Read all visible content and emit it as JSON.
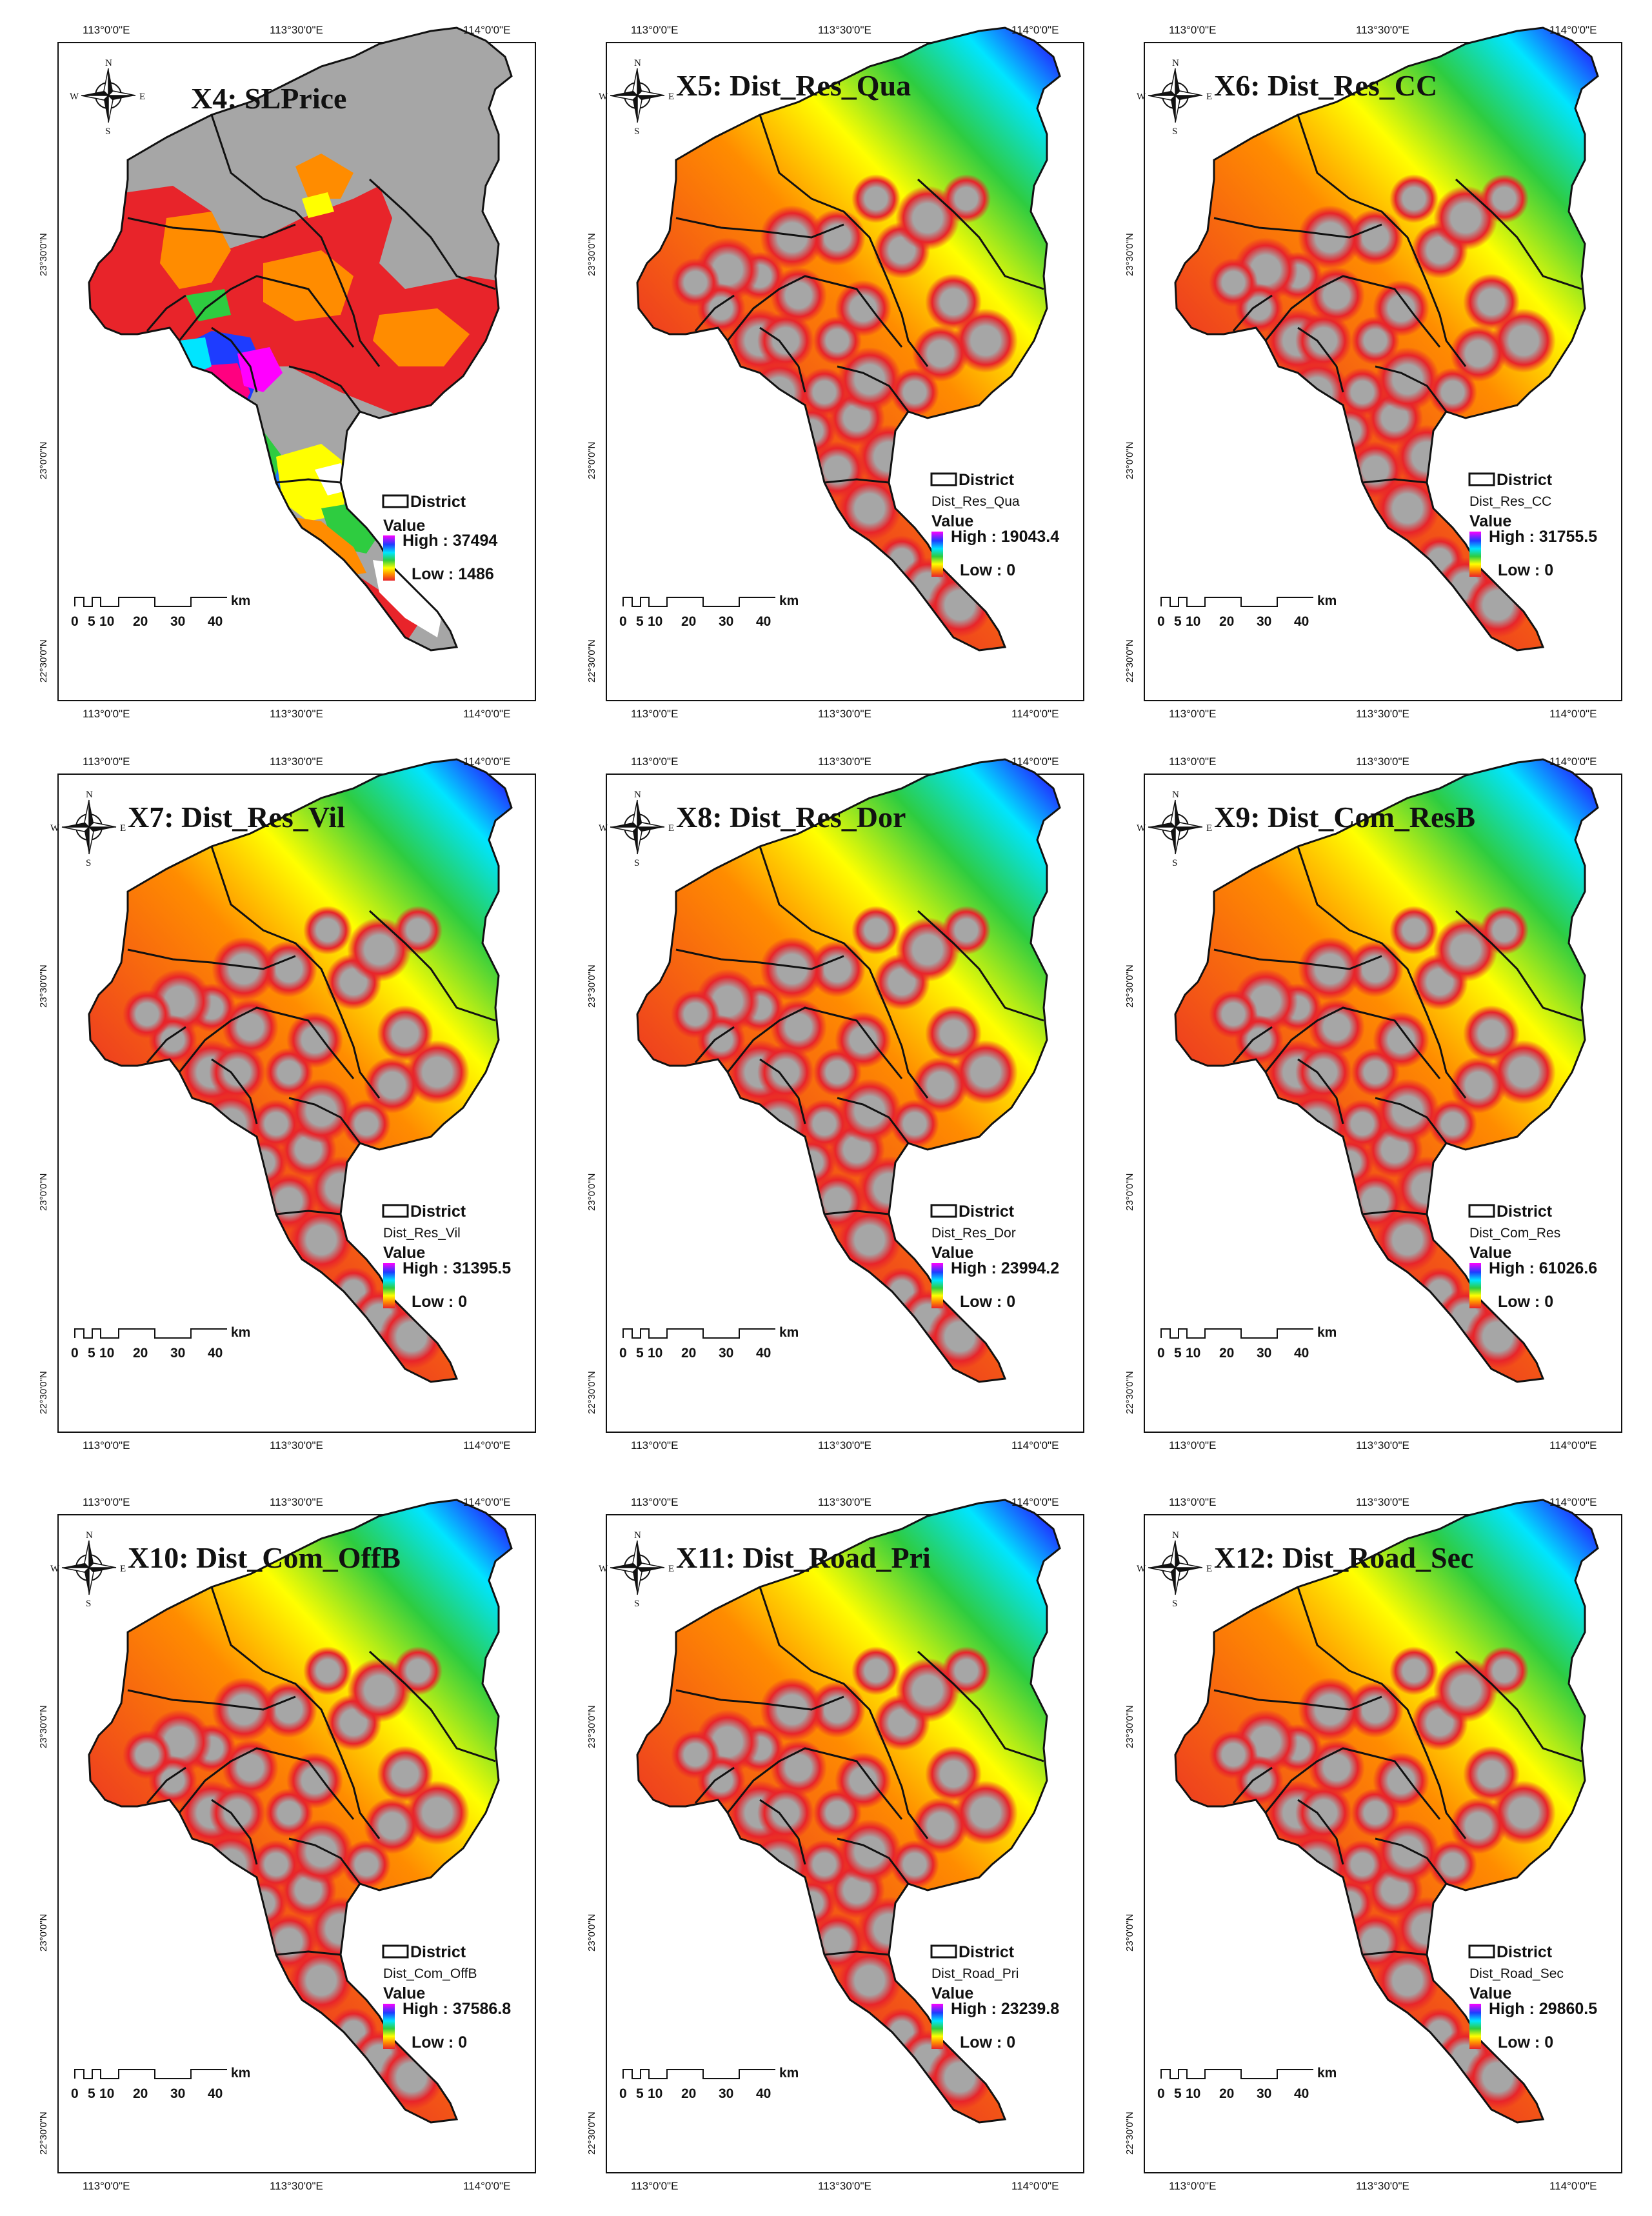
{
  "axis_labels": {
    "lon_left": "113°0'0\"E",
    "lon_mid": "113°30'0\"E",
    "lon_right": "114°0'0\"E",
    "lat_top": "23°30'0\"N",
    "lat_mid": "23°0'0\"N",
    "lat_bottom": "22°30'0\"N"
  },
  "compass": {
    "n": "N",
    "s": "S",
    "e": "E",
    "w": "W"
  },
  "scale_bar": {
    "ticks": [
      "0",
      "5",
      "10",
      "20",
      "30",
      "40"
    ],
    "unit": "km"
  },
  "legend_common": {
    "district": "District",
    "value": "Value"
  },
  "colors": {
    "gray": "#a6a6a6",
    "red": "#e8242a",
    "orange": "#ff8c00",
    "yellow": "#ffff00",
    "green": "#2ecc40",
    "cyan": "#00e5ff",
    "blue": "#1e3cff",
    "magenta": "#ff00ff"
  },
  "panels": [
    {
      "title": "X4: SLPrice",
      "layer": "",
      "high": "High : 37494",
      "low": "Low : 1486"
    },
    {
      "title": "X5: Dist_Res_Qua",
      "layer": "Dist_Res_Qua",
      "high": "High : 19043.4",
      "low": "Low : 0"
    },
    {
      "title": "X6: Dist_Res_CC",
      "layer": "Dist_Res_CC",
      "high": "High : 31755.5",
      "low": "Low : 0"
    },
    {
      "title": "X7: Dist_Res_Vil",
      "layer": "Dist_Res_Vil",
      "high": "High : 31395.5",
      "low": "Low : 0"
    },
    {
      "title": "X8: Dist_Res_Dor",
      "layer": "Dist_Res_Dor",
      "high": "High : 23994.2",
      "low": "Low : 0"
    },
    {
      "title": "X9: Dist_Com_ResB",
      "layer": "Dist_Com_Res",
      "high": "High : 61026.6",
      "low": "Low : 0"
    },
    {
      "title": "X10: Dist_Com_OffB",
      "layer": "Dist_Com_OffB",
      "high": "High : 37586.8",
      "low": "Low : 0"
    },
    {
      "title": "X11: Dist_Road_Pri",
      "layer": "Dist_Road_Pri",
      "high": "High : 23239.8",
      "low": "Low : 0"
    },
    {
      "title": "X12: Dist_Road_Sec",
      "layer": "Dist_Road_Sec",
      "high": "High : 29860.5",
      "low": "Low : 0"
    }
  ]
}
